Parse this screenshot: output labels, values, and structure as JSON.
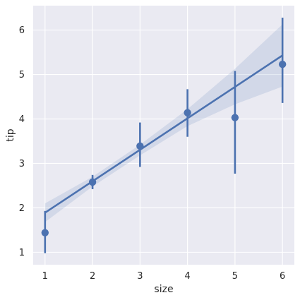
{
  "chart_data": {
    "type": "scatter",
    "title": "",
    "xlabel": "size",
    "ylabel": "tip",
    "xlim": [
      0.75,
      6.25
    ],
    "ylim": [
      0.72,
      6.55
    ],
    "grid": true,
    "x_ticks": [
      "1",
      "2",
      "3",
      "4",
      "5",
      "6"
    ],
    "y_ticks": [
      "1",
      "2",
      "3",
      "4",
      "5",
      "6"
    ],
    "points": [
      {
        "x": 1,
        "y": 1.44,
        "ci": [
          0.98,
          1.93
        ]
      },
      {
        "x": 2,
        "y": 2.58,
        "ci": [
          2.42,
          2.74
        ]
      },
      {
        "x": 3,
        "y": 3.39,
        "ci": [
          2.92,
          3.92
        ]
      },
      {
        "x": 4,
        "y": 4.14,
        "ci": [
          3.6,
          4.67
        ]
      },
      {
        "x": 5,
        "y": 4.03,
        "ci": [
          2.77,
          5.08
        ]
      },
      {
        "x": 6,
        "y": 5.23,
        "ci": [
          4.36,
          6.28
        ]
      }
    ],
    "regression_line": {
      "x": [
        1,
        6
      ],
      "y": [
        1.89,
        5.43
      ]
    },
    "confidence_band": {
      "x": [
        1,
        2,
        3,
        4,
        5,
        6
      ],
      "lower": [
        1.68,
        2.48,
        3.18,
        3.84,
        4.33,
        4.73
      ],
      "upper": [
        2.1,
        2.7,
        3.42,
        4.22,
        5.13,
        6.13
      ]
    },
    "colors": {
      "plot_background": "#eaeaf2",
      "grid": "#ffffff",
      "series": "#4c72b0",
      "band": "#4c72b0"
    }
  }
}
